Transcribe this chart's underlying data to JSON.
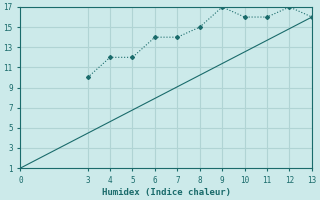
{
  "xlabel": "Humidex (Indice chaleur)",
  "bg_color": "#cceaea",
  "grid_color": "#b0d4d4",
  "line_color": "#1a6b6b",
  "xlim": [
    0,
    13
  ],
  "ylim": [
    1,
    17
  ],
  "xticks": [
    0,
    3,
    4,
    5,
    6,
    7,
    8,
    9,
    10,
    11,
    12,
    13
  ],
  "yticks": [
    1,
    3,
    5,
    7,
    9,
    11,
    13,
    15,
    17
  ],
  "line1_x": [
    3,
    4,
    5,
    6,
    7,
    8,
    9,
    10,
    11,
    12,
    13
  ],
  "line1_y": [
    10,
    12,
    12,
    14,
    14,
    15,
    17,
    16,
    16,
    17,
    16
  ],
  "line2_x": [
    0,
    13
  ],
  "line2_y": [
    1,
    16
  ]
}
